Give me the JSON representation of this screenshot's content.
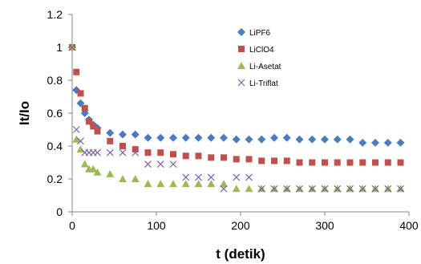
{
  "chart_data": {
    "type": "scatter",
    "xlabel": "t (detik)",
    "ylabel": "It/Io",
    "xlim": [
      0,
      400
    ],
    "ylim": [
      0,
      1.2
    ],
    "xticks": [
      0,
      100,
      200,
      300,
      400
    ],
    "yticks": [
      0,
      0.2,
      0.4,
      0.6,
      0.8,
      1,
      1.2
    ],
    "xtick_labels": [
      "0",
      "100",
      "200",
      "300",
      "400"
    ],
    "ytick_labels": [
      "0",
      "0.2",
      "0.4",
      "0.6",
      "0.8",
      "1",
      "1.2"
    ],
    "grid": false,
    "legend_position": "top-right",
    "series": [
      {
        "name": "LiPF6",
        "marker": "diamond",
        "color": "#4a7dbd",
        "points": [
          [
            0,
            1.0
          ],
          [
            5,
            0.74
          ],
          [
            10,
            0.66
          ],
          [
            15,
            0.6
          ],
          [
            20,
            0.56
          ],
          [
            25,
            0.53
          ],
          [
            30,
            0.51
          ],
          [
            45,
            0.48
          ],
          [
            60,
            0.47
          ],
          [
            75,
            0.47
          ],
          [
            90,
            0.45
          ],
          [
            105,
            0.45
          ],
          [
            120,
            0.45
          ],
          [
            135,
            0.45
          ],
          [
            150,
            0.45
          ],
          [
            165,
            0.45
          ],
          [
            180,
            0.45
          ],
          [
            195,
            0.44
          ],
          [
            210,
            0.44
          ],
          [
            225,
            0.44
          ],
          [
            240,
            0.45
          ],
          [
            255,
            0.45
          ],
          [
            270,
            0.44
          ],
          [
            285,
            0.44
          ],
          [
            300,
            0.44
          ],
          [
            315,
            0.44
          ],
          [
            330,
            0.44
          ],
          [
            345,
            0.42
          ],
          [
            360,
            0.42
          ],
          [
            375,
            0.42
          ],
          [
            390,
            0.42
          ]
        ]
      },
      {
        "name": "LiClO4",
        "marker": "square",
        "color": "#c0504d",
        "points": [
          [
            0,
            1.0
          ],
          [
            5,
            0.85
          ],
          [
            10,
            0.72
          ],
          [
            15,
            0.63
          ],
          [
            20,
            0.55
          ],
          [
            25,
            0.52
          ],
          [
            30,
            0.49
          ],
          [
            45,
            0.43
          ],
          [
            60,
            0.4
          ],
          [
            75,
            0.38
          ],
          [
            90,
            0.36
          ],
          [
            105,
            0.36
          ],
          [
            120,
            0.35
          ],
          [
            135,
            0.34
          ],
          [
            150,
            0.34
          ],
          [
            165,
            0.33
          ],
          [
            180,
            0.33
          ],
          [
            195,
            0.32
          ],
          [
            210,
            0.32
          ],
          [
            225,
            0.31
          ],
          [
            240,
            0.31
          ],
          [
            255,
            0.31
          ],
          [
            270,
            0.3
          ],
          [
            285,
            0.3
          ],
          [
            300,
            0.3
          ],
          [
            315,
            0.3
          ],
          [
            330,
            0.3
          ],
          [
            345,
            0.3
          ],
          [
            360,
            0.3
          ],
          [
            375,
            0.3
          ],
          [
            390,
            0.3
          ]
        ]
      },
      {
        "name": "Li-Asetat",
        "marker": "triangle",
        "color": "#9bbb59",
        "points": [
          [
            0,
            1.0
          ],
          [
            5,
            0.44
          ],
          [
            10,
            0.38
          ],
          [
            15,
            0.29
          ],
          [
            20,
            0.26
          ],
          [
            25,
            0.26
          ],
          [
            30,
            0.24
          ],
          [
            45,
            0.23
          ],
          [
            60,
            0.2
          ],
          [
            75,
            0.2
          ],
          [
            90,
            0.17
          ],
          [
            105,
            0.17
          ],
          [
            120,
            0.17
          ],
          [
            135,
            0.17
          ],
          [
            150,
            0.17
          ],
          [
            165,
            0.17
          ],
          [
            180,
            0.17
          ],
          [
            195,
            0.14
          ],
          [
            210,
            0.14
          ],
          [
            225,
            0.14
          ],
          [
            240,
            0.14
          ],
          [
            255,
            0.14
          ],
          [
            270,
            0.14
          ],
          [
            285,
            0.14
          ],
          [
            300,
            0.14
          ],
          [
            315,
            0.14
          ],
          [
            330,
            0.14
          ],
          [
            345,
            0.14
          ],
          [
            360,
            0.14
          ],
          [
            375,
            0.14
          ],
          [
            390,
            0.14
          ]
        ]
      },
      {
        "name": "Li-Triflat",
        "marker": "x",
        "color": "#8064a2",
        "points": [
          [
            0,
            1.0
          ],
          [
            5,
            0.5
          ],
          [
            10,
            0.43
          ],
          [
            15,
            0.36
          ],
          [
            20,
            0.36
          ],
          [
            25,
            0.36
          ],
          [
            30,
            0.36
          ],
          [
            45,
            0.36
          ],
          [
            60,
            0.36
          ],
          [
            75,
            0.36
          ],
          [
            90,
            0.29
          ],
          [
            105,
            0.29
          ],
          [
            120,
            0.29
          ],
          [
            135,
            0.21
          ],
          [
            150,
            0.21
          ],
          [
            165,
            0.21
          ],
          [
            180,
            0.14
          ],
          [
            195,
            0.21
          ],
          [
            210,
            0.21
          ],
          [
            225,
            0.14
          ],
          [
            240,
            0.14
          ],
          [
            255,
            0.14
          ],
          [
            270,
            0.14
          ],
          [
            285,
            0.14
          ],
          [
            300,
            0.14
          ],
          [
            315,
            0.14
          ],
          [
            330,
            0.14
          ],
          [
            345,
            0.14
          ],
          [
            360,
            0.14
          ],
          [
            375,
            0.14
          ],
          [
            390,
            0.14
          ]
        ]
      }
    ]
  }
}
